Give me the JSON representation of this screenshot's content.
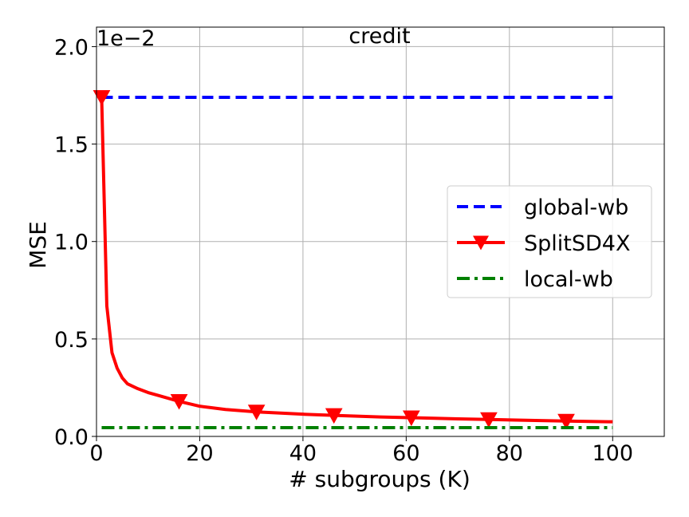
{
  "chart_data": {
    "type": "line",
    "title": "credit",
    "xlabel": "# subgroups (K)",
    "ylabel": "MSE",
    "y_offset_label": "1e−2",
    "xlim": [
      0,
      110
    ],
    "ylim": [
      0,
      2.1
    ],
    "x_ticks": [
      0,
      20,
      40,
      60,
      80,
      100
    ],
    "x_tick_labels": [
      "0",
      "20",
      "40",
      "60",
      "80",
      "100"
    ],
    "y_ticks": [
      0,
      0.5,
      1.0,
      1.5,
      2.0
    ],
    "y_tick_labels": [
      "0.0",
      "0.5",
      "1.0",
      "1.5",
      "2.0"
    ],
    "grid": true,
    "legend_position": "center-right",
    "series": [
      {
        "name": "global-wb",
        "color": "#0000ff",
        "style": "dashed",
        "marker": "none",
        "x": [
          1,
          100
        ],
        "y": [
          1.74,
          1.74
        ]
      },
      {
        "name": "SplitSD4X",
        "color": "#ff0000",
        "style": "solid",
        "marker": "triangle-down",
        "marker_x": [
          1,
          16,
          31,
          46,
          61,
          76,
          91
        ],
        "x": [
          1,
          2,
          3,
          4,
          5,
          6,
          8,
          10,
          12,
          16,
          20,
          25,
          31,
          40,
          46,
          55,
          61,
          70,
          76,
          85,
          91,
          100
        ],
        "y": [
          1.74,
          0.67,
          0.43,
          0.35,
          0.3,
          0.27,
          0.245,
          0.225,
          0.21,
          0.18,
          0.155,
          0.138,
          0.126,
          0.114,
          0.108,
          0.1,
          0.096,
          0.09,
          0.087,
          0.082,
          0.079,
          0.075
        ]
      },
      {
        "name": "local-wb",
        "color": "#008000",
        "style": "dashdot",
        "marker": "none",
        "x": [
          1,
          100
        ],
        "y": [
          0.045,
          0.045
        ]
      }
    ]
  }
}
